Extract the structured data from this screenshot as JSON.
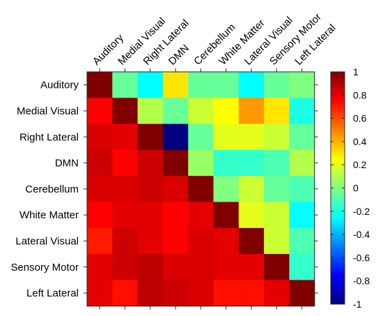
{
  "chart_data": {
    "type": "heatmap",
    "row_labels": [
      "Auditory",
      "Medial Visual",
      "Right Lateral",
      "DMN",
      "Cerebellum",
      "White Matter",
      "Lateral Visual",
      "Sensory Motor",
      "Left Lateral"
    ],
    "col_labels": [
      "Auditory",
      "Medial Visual",
      "Right Lateral",
      "DMN",
      "Cerebellum",
      "White Matter",
      "Lateral Visual",
      "Sensory Motor",
      "Left Lateral"
    ],
    "values": [
      [
        1.0,
        -0.05,
        -0.25,
        0.3,
        -0.05,
        -0.05,
        -0.25,
        -0.05,
        0.0
      ],
      [
        0.75,
        1.0,
        0.1,
        -0.05,
        0.15,
        0.25,
        0.45,
        0.3,
        -0.2
      ],
      [
        0.82,
        0.8,
        1.0,
        -1.0,
        -0.05,
        0.2,
        0.2,
        0.15,
        -0.05
      ],
      [
        0.85,
        0.75,
        0.85,
        1.0,
        0.05,
        -0.15,
        -0.15,
        -0.1,
        0.1
      ],
      [
        0.82,
        0.82,
        0.85,
        0.82,
        1.0,
        0.0,
        0.15,
        -0.05,
        -0.1
      ],
      [
        0.75,
        0.8,
        0.8,
        0.75,
        0.8,
        1.0,
        0.2,
        0.15,
        -0.25
      ],
      [
        0.7,
        0.85,
        0.8,
        0.75,
        0.82,
        0.8,
        1.0,
        0.15,
        -0.1
      ],
      [
        0.8,
        0.85,
        0.88,
        0.82,
        0.82,
        0.8,
        0.8,
        1.0,
        -0.15
      ],
      [
        0.8,
        0.72,
        0.88,
        0.85,
        0.82,
        0.72,
        0.72,
        0.8,
        1.0
      ]
    ],
    "clim": [
      -1,
      1
    ],
    "colormap": "jet",
    "colorbar": {
      "location": "right",
      "ticks": [
        -1,
        -0.8,
        -0.6,
        -0.4,
        -0.2,
        0,
        0.2,
        0.4,
        0.6,
        0.8,
        1
      ],
      "tick_labels": [
        "-1",
        "-0.8",
        "-0.6",
        "-0.4",
        "-0.2",
        "0",
        "0.2",
        "0.4",
        "0.6",
        "0.8",
        "1"
      ]
    },
    "title": "",
    "xlabel": "",
    "ylabel": "",
    "grid": false
  }
}
